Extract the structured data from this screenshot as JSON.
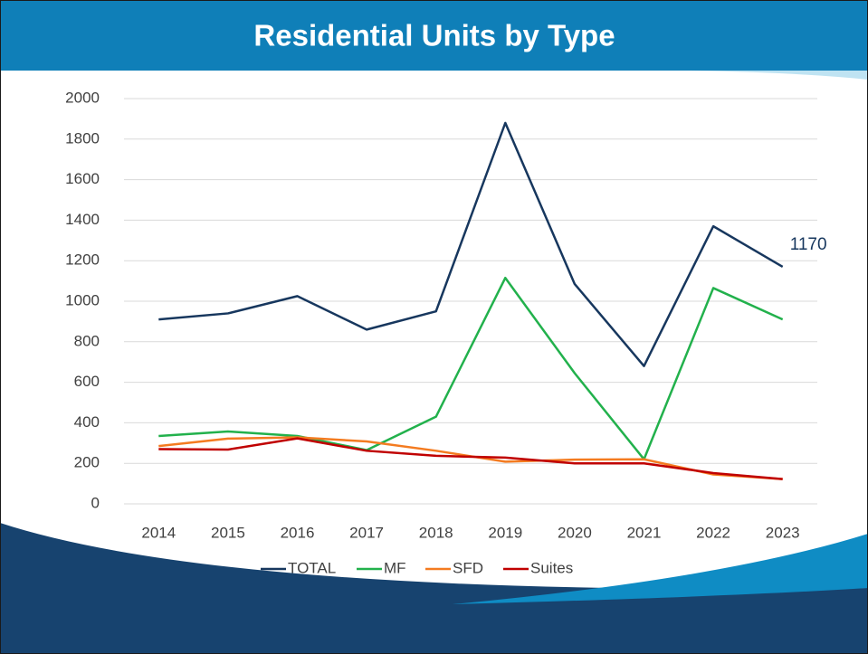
{
  "chart_data": {
    "type": "line",
    "title": "Residential Units by Type",
    "categories": [
      "2014",
      "2015",
      "2016",
      "2017",
      "2018",
      "2019",
      "2020",
      "2021",
      "2022",
      "2023"
    ],
    "series": [
      {
        "name": "TOTAL",
        "color": "#17375e",
        "values": [
          910,
          940,
          1025,
          860,
          950,
          1880,
          1085,
          680,
          1370,
          1170
        ]
      },
      {
        "name": "MF",
        "color": "#22b14c",
        "values": [
          335,
          357,
          335,
          265,
          430,
          1115,
          645,
          220,
          1065,
          910
        ]
      },
      {
        "name": "SFD",
        "color": "#f47b20",
        "values": [
          285,
          322,
          328,
          308,
          262,
          208,
          218,
          220,
          145,
          122
        ]
      },
      {
        "name": "Suites",
        "color": "#c00000",
        "values": [
          270,
          268,
          323,
          262,
          237,
          228,
          200,
          200,
          152,
          122
        ]
      }
    ],
    "ylim": [
      0,
      2000
    ],
    "yticks": [
      0,
      200,
      400,
      600,
      800,
      1000,
      1200,
      1400,
      1600,
      1800,
      2000
    ],
    "grid": true,
    "legend": "bottom"
  }
}
